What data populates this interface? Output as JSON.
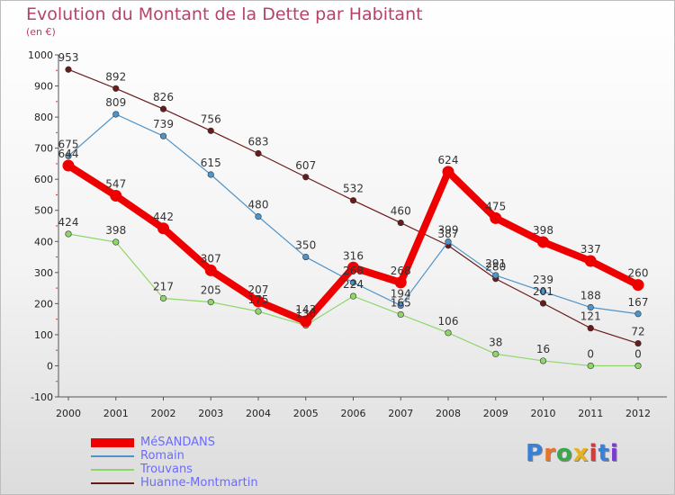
{
  "title": "Evolution du Montant de la Dette par Habitant",
  "unit": "(en €)",
  "logo": "Proxiti",
  "chart_data": {
    "type": "line",
    "x": [
      "2000",
      "2001",
      "2002",
      "2003",
      "2004",
      "2005",
      "2006",
      "2007",
      "2008",
      "2009",
      "2010",
      "2011",
      "2012"
    ],
    "ylim": [
      -100,
      1000
    ],
    "yticks": [
      -100,
      0,
      100,
      200,
      300,
      400,
      500,
      600,
      700,
      800,
      900,
      1000
    ],
    "grid": false,
    "legend": "bottom-left",
    "series": [
      {
        "name": "Huanne-Montmartin",
        "color": "#6b1a1a",
        "values": [
          953,
          892,
          826,
          756,
          683,
          607,
          532,
          460,
          387,
          280,
          201,
          121,
          72
        ]
      },
      {
        "name": "Romain",
        "color": "#4f94c9",
        "values": [
          675,
          809,
          739,
          615,
          480,
          350,
          268,
          194,
          399,
          291,
          239,
          188,
          167
        ]
      },
      {
        "name": "Trouvans",
        "color": "#8fd66a",
        "values": [
          424,
          398,
          217,
          205,
          175,
          130,
          224,
          165,
          106,
          38,
          16,
          0,
          0
        ]
      },
      {
        "name": "MéSANDANS",
        "color": "#ee0000",
        "values": [
          644,
          547,
          442,
          307,
          207,
          143,
          316,
          268,
          624,
          475,
          398,
          337,
          260
        ]
      }
    ]
  },
  "legend_items": [
    {
      "label": "MéSANDANS",
      "color": "#ee0000",
      "text_color": "#6b6bff",
      "thickness": 10
    },
    {
      "label": "Romain",
      "color": "#4f94c9",
      "text_color": "#6b6bff",
      "thickness": 2
    },
    {
      "label": "Trouvans",
      "color": "#8fd66a",
      "text_color": "#6b6bff",
      "thickness": 2
    },
    {
      "label": "Huanne-Montmartin",
      "color": "#6b1a1a",
      "text_color": "#6b6bff",
      "thickness": 2
    }
  ]
}
